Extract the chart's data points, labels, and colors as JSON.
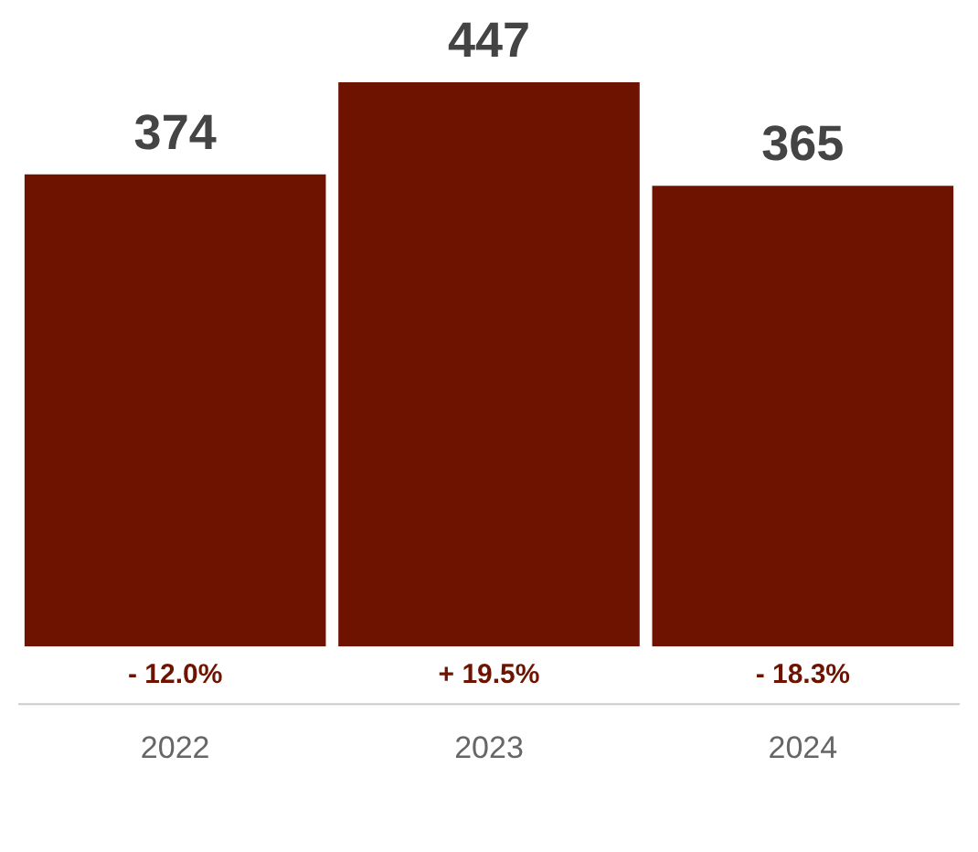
{
  "chart_data": {
    "type": "bar",
    "categories": [
      "2022",
      "2023",
      "2024"
    ],
    "values": [
      374,
      447,
      365
    ],
    "color": "#6e1300",
    "data_labels": true,
    "annotations": [
      "- 12.0%",
      "+ 19.5%",
      "- 18.3%"
    ]
  }
}
